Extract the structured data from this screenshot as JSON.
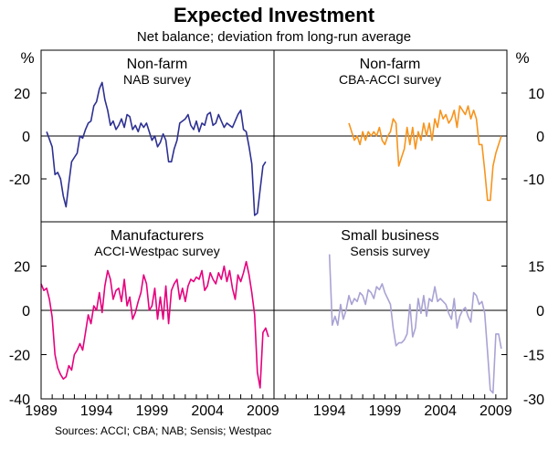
{
  "title": "Expected Investment",
  "subtitle": "Net balance; deviation from long-run average",
  "source": "Sources: ACCI; CBA; NAB; Sensis; Westpac",
  "units": {
    "left": "%",
    "right": "%"
  },
  "x_ticks": [
    "1989",
    "1994",
    "1999",
    "2004",
    "2009"
  ],
  "left_ticks_top": [
    "20",
    "0",
    "-20"
  ],
  "right_ticks_top": [
    "10",
    "0",
    "-10"
  ],
  "left_ticks_bottom": [
    "20",
    "0",
    "-20",
    "-40"
  ],
  "right_ticks_bottom": [
    "15",
    "0",
    "-15",
    "-30"
  ],
  "chart_data": [
    {
      "type": "line",
      "position": "top-left",
      "title": "Non-farm",
      "subtitle": "NAB survey",
      "color": "#2e3192",
      "ylabel": "%",
      "xlim": [
        1989,
        2010
      ],
      "ylim": [
        -40,
        40
      ],
      "x": [
        1989.5,
        1990.0,
        1990.25,
        1990.5,
        1990.75,
        1991.0,
        1991.25,
        1991.5,
        1991.75,
        1992.0,
        1992.25,
        1992.5,
        1992.75,
        1993.0,
        1993.25,
        1993.5,
        1993.75,
        1994.0,
        1994.25,
        1994.5,
        1994.75,
        1995.0,
        1995.25,
        1995.5,
        1995.75,
        1996.0,
        1996.25,
        1996.5,
        1996.75,
        1997.0,
        1997.25,
        1997.5,
        1997.75,
        1998.0,
        1998.25,
        1998.5,
        1998.75,
        1999.0,
        1999.25,
        1999.5,
        1999.75,
        2000.0,
        2000.25,
        2000.5,
        2000.75,
        2001.0,
        2001.25,
        2001.5,
        2001.75,
        2002.0,
        2002.25,
        2002.5,
        2002.75,
        2003.0,
        2003.25,
        2003.5,
        2003.75,
        2004.0,
        2004.25,
        2004.5,
        2004.75,
        2005.0,
        2005.25,
        2005.5,
        2005.75,
        2006.0,
        2006.25,
        2006.5,
        2006.75,
        2007.0,
        2007.25,
        2007.5,
        2007.75,
        2008.0,
        2008.25,
        2008.5,
        2008.75,
        2009.0,
        2009.25
      ],
      "values": [
        2,
        -5,
        -18,
        -17,
        -20,
        -28,
        -33,
        -22,
        -12,
        -10,
        -8,
        0,
        -1,
        3,
        6,
        7,
        14,
        16,
        22,
        25,
        17,
        12,
        5,
        7,
        3,
        5,
        8,
        4,
        10,
        9,
        3,
        5,
        2,
        6,
        4,
        6,
        2,
        -2,
        0,
        -5,
        -3,
        1,
        -2,
        -12,
        -12,
        -6,
        -2,
        6,
        7,
        8,
        10,
        5,
        3,
        7,
        2,
        6,
        5,
        10,
        11,
        5,
        6,
        10,
        7,
        4,
        6,
        5,
        4,
        7,
        10,
        12,
        3,
        2,
        -5,
        -13,
        -37,
        -36,
        -25,
        -14,
        -12
      ]
    },
    {
      "type": "line",
      "position": "top-right",
      "title": "Non-farm",
      "subtitle": "CBA-ACCI survey",
      "color": "#f7941d",
      "ylabel": "%",
      "xlim": [
        1989,
        2010
      ],
      "ylim": [
        -20,
        20
      ],
      "x": [
        1995.75,
        1996.0,
        1996.25,
        1996.5,
        1996.75,
        1997.0,
        1997.25,
        1997.5,
        1997.75,
        1998.0,
        1998.25,
        1998.5,
        1998.75,
        1999.0,
        1999.25,
        1999.5,
        1999.75,
        2000.0,
        2000.25,
        2000.5,
        2000.75,
        2001.0,
        2001.25,
        2001.5,
        2001.75,
        2002.0,
        2002.25,
        2002.5,
        2002.75,
        2003.0,
        2003.25,
        2003.5,
        2003.75,
        2004.0,
        2004.25,
        2004.5,
        2004.75,
        2005.0,
        2005.25,
        2005.5,
        2005.75,
        2006.0,
        2006.25,
        2006.5,
        2006.75,
        2007.0,
        2007.25,
        2007.5,
        2007.75,
        2008.0,
        2008.25,
        2008.5,
        2008.75,
        2009.0,
        2009.25,
        2009.5
      ],
      "values": [
        3,
        1,
        -1,
        0,
        -2,
        1,
        -1,
        1,
        0,
        1,
        0,
        2,
        -1,
        -2,
        0,
        1,
        4,
        3,
        -7,
        -5,
        -3,
        2,
        -2,
        2,
        -3,
        1,
        -1,
        3,
        0,
        3,
        -1,
        4,
        2,
        6,
        4,
        5,
        3,
        4,
        6,
        2,
        7,
        6,
        5,
        7,
        4,
        6,
        4,
        -2,
        -2,
        -8,
        -15,
        -15,
        -7,
        -4,
        -2,
        0
      ]
    },
    {
      "type": "line",
      "position": "bottom-left",
      "title": "Manufacturers",
      "subtitle": "ACCI-Westpac survey",
      "color": "#e6007e",
      "ylabel": "%",
      "xlim": [
        1989,
        2010
      ],
      "ylim": [
        -40,
        40
      ],
      "x": [
        1989.0,
        1989.25,
        1989.5,
        1989.75,
        1990.0,
        1990.25,
        1990.5,
        1990.75,
        1991.0,
        1991.25,
        1991.5,
        1991.75,
        1992.0,
        1992.25,
        1992.5,
        1992.75,
        1993.0,
        1993.25,
        1993.5,
        1993.75,
        1994.0,
        1994.25,
        1994.5,
        1994.75,
        1995.0,
        1995.25,
        1995.5,
        1995.75,
        1996.0,
        1996.25,
        1996.5,
        1996.75,
        1997.0,
        1997.25,
        1997.5,
        1997.75,
        1998.0,
        1998.25,
        1998.5,
        1998.75,
        1999.0,
        1999.25,
        1999.5,
        1999.75,
        2000.0,
        2000.25,
        2000.5,
        2000.75,
        2001.0,
        2001.25,
        2001.5,
        2001.75,
        2002.0,
        2002.25,
        2002.5,
        2002.75,
        2003.0,
        2003.25,
        2003.5,
        2003.75,
        2004.0,
        2004.25,
        2004.5,
        2004.75,
        2005.0,
        2005.25,
        2005.5,
        2005.75,
        2006.0,
        2006.25,
        2006.5,
        2006.75,
        2007.0,
        2007.25,
        2007.5,
        2007.75,
        2008.0,
        2008.25,
        2008.5,
        2008.75,
        2009.0,
        2009.25,
        2009.5
      ],
      "values": [
        12,
        9,
        10,
        5,
        -3,
        -20,
        -26,
        -29,
        -31,
        -30,
        -25,
        -27,
        -20,
        -18,
        -15,
        -18,
        -10,
        -2,
        -6,
        2,
        0,
        8,
        -1,
        11,
        18,
        14,
        5,
        9,
        10,
        4,
        14,
        2,
        6,
        -4,
        -1,
        4,
        8,
        16,
        12,
        0,
        2,
        10,
        -4,
        6,
        -4,
        11,
        -6,
        9,
        12,
        14,
        5,
        10,
        4,
        11,
        14,
        13,
        15,
        14,
        18,
        9,
        11,
        17,
        14,
        12,
        17,
        14,
        20,
        13,
        18,
        10,
        5,
        16,
        13,
        17,
        22,
        16,
        8,
        -2,
        -28,
        -35,
        -10,
        -8,
        -12
      ]
    },
    {
      "type": "line",
      "position": "bottom-right",
      "title": "Small business",
      "subtitle": "Sensis survey",
      "color": "#a9a3d4",
      "ylabel": "%",
      "xlim": [
        1989,
        2010
      ],
      "ylim": [
        -30,
        30
      ],
      "x": [
        1994.0,
        1994.25,
        1994.5,
        1994.75,
        1995.0,
        1995.25,
        1995.5,
        1995.75,
        1996.0,
        1996.25,
        1996.5,
        1996.75,
        1997.0,
        1997.25,
        1997.5,
        1997.75,
        1998.0,
        1998.25,
        1998.5,
        1998.75,
        1999.0,
        1999.25,
        1999.5,
        1999.75,
        2000.0,
        2000.25,
        2000.5,
        2000.75,
        2001.0,
        2001.25,
        2001.5,
        2001.75,
        2002.0,
        2002.25,
        2002.5,
        2002.75,
        2003.0,
        2003.25,
        2003.5,
        2003.75,
        2004.0,
        2004.25,
        2004.5,
        2004.75,
        2005.0,
        2005.25,
        2005.5,
        2005.75,
        2006.0,
        2006.25,
        2006.5,
        2006.75,
        2007.0,
        2007.25,
        2007.5,
        2007.75,
        2008.0,
        2008.25,
        2008.5,
        2008.75,
        2009.0,
        2009.25,
        2009.5
      ],
      "values": [
        19,
        -5,
        -2,
        -5,
        2,
        -3,
        0,
        5,
        2,
        4,
        3,
        6,
        5,
        2,
        7,
        6,
        4,
        8,
        7,
        9,
        6,
        4,
        2,
        -6,
        -12,
        -11,
        -11,
        -10,
        -8,
        2,
        -9,
        -6,
        4,
        -1,
        5,
        -2,
        4,
        3,
        8,
        3,
        4,
        3,
        2,
        -1,
        -3,
        4,
        -6,
        -2,
        0,
        1,
        -2,
        -4,
        6,
        5,
        2,
        3,
        -1,
        -14,
        -27,
        -28,
        -8,
        -8,
        -13
      ]
    }
  ]
}
